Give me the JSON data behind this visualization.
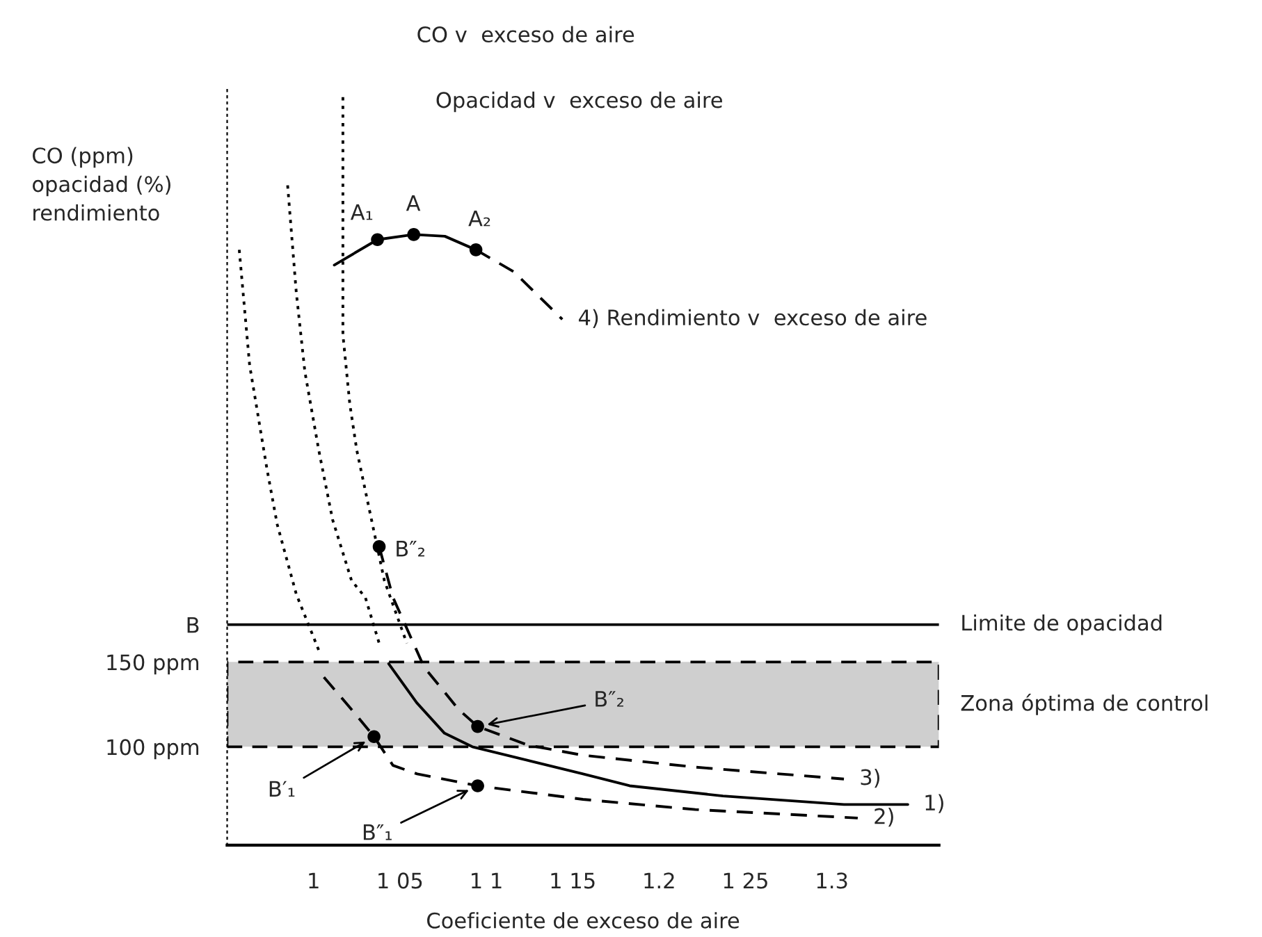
{
  "chart_data": {
    "type": "line",
    "ylabel": "CO (ppm)\nopacidad (%)\nrendimiento",
    "xlabel": "Coeficiente de exceso de aire",
    "xlim": [
      0.95,
      1.362
    ],
    "ylim": [
      42,
      490
    ],
    "xticks": [
      1,
      {
        "value": 1.05,
        "label": "1 05"
      },
      {
        "value": 1.1,
        "label": "1 1"
      },
      {
        "value": 1.15,
        "label": "1 15"
      },
      1.2,
      {
        "value": 1.25,
        "label": "1 25"
      },
      1.3
    ],
    "yticks": [
      {
        "value": 100,
        "label": "100 ppm"
      },
      {
        "value": 150,
        "label": "150 ppm"
      },
      {
        "value": 172,
        "label": "B"
      }
    ],
    "grid": false,
    "legend": false,
    "series": [
      {
        "line_style": "dotted",
        "color": "#000000",
        "x": [
          0.957,
          0.963,
          0.973,
          0.979,
          0.99,
          1.003
        ],
        "values": [
          393,
          325,
          264,
          231,
          190,
          157
        ]
      },
      {
        "line_style": "dotted",
        "color": "#000000",
        "x": [
          0.985,
          0.99,
          0.995,
          1.003,
          1.011,
          1.022,
          1.03,
          1.038
        ],
        "values": [
          431,
          368,
          321,
          275,
          234,
          198,
          188,
          161
        ]
      },
      {
        "line_style": "dotted",
        "color": "#000000",
        "x": [
          1.017,
          1.017,
          1.021,
          1.025,
          1.041,
          1.054
        ],
        "values": [
          483,
          343,
          302,
          275,
          198,
          161
        ]
      },
      {
        "line_style": "solid",
        "name": "1)",
        "color": "#000000",
        "x": [
          1.0435,
          1.0597,
          1.0758,
          1.0919,
          1.124,
          1.156,
          1.183,
          1.237,
          1.307,
          1.344
        ],
        "values": [
          149,
          126,
          108,
          100,
          92,
          84,
          77,
          71,
          66,
          66
        ]
      },
      {
        "line_style": "dashed",
        "name": "2)",
        "color": "#000000",
        "x": [
          1.006,
          1.022,
          1.035,
          1.046,
          1.06,
          1.095,
          1.156,
          1.221,
          1.315
        ],
        "values": [
          141,
          122,
          106,
          89,
          84,
          77,
          69,
          63,
          58
        ]
      },
      {
        "line_style": "dashed",
        "name": "3)",
        "color": "#000000",
        "x": [
          1.038,
          1.046,
          1.064,
          1.084,
          1.095,
          1.124,
          1.156,
          1.221,
          1.307
        ],
        "values": [
          218,
          188,
          147,
          122,
          112,
          101,
          95,
          88,
          81
        ]
      },
      {
        "line_style": "solid",
        "color": "#000000",
        "x": [
          1.012,
          1.037,
          1.058,
          1.076,
          1.094
        ],
        "values": [
          384,
          399,
          402,
          401,
          393
        ]
      },
      {
        "line_style": "dashed",
        "name": "4) Rendimiento v  exceso de aire",
        "color": "#000000",
        "x": [
          1.094,
          1.116,
          1.144
        ],
        "values": [
          393,
          380,
          352
        ]
      },
      {
        "type": "scatter",
        "marker": "circle",
        "color": "#000000",
        "x": [
          1.037,
          1.058,
          1.094,
          1.038,
          1.035,
          1.095,
          1.095
        ],
        "values": [
          399,
          402,
          393,
          218,
          106,
          112,
          77
        ]
      }
    ],
    "ref_lines": [
      {
        "axis": "y",
        "value": 172,
        "label": "Limite de opacidad",
        "color": "#000000",
        "line_style": "solid"
      }
    ],
    "bands": [
      {
        "axis": "y",
        "from": 100,
        "to": 150,
        "label": "Zona óptima de control",
        "color": "#cfcfcf"
      }
    ],
    "annotations": [
      {
        "text": "A₁",
        "x": 1.037,
        "y": 399
      },
      {
        "text": "A",
        "x": 1.058,
        "y": 402
      },
      {
        "text": "A₂",
        "x": 1.094,
        "y": 393
      },
      {
        "text": "B″₂",
        "x": 1.038,
        "y": 218
      },
      {
        "text": "B′₁",
        "x": 1.035,
        "y": 106
      },
      {
        "text": "B″₂",
        "x": 1.095,
        "y": 112
      },
      {
        "text": "B″₁",
        "x": 1.095,
        "y": 77
      },
      "CO v  exceso de aire",
      "Opacidad v  exceso de aire"
    ]
  }
}
